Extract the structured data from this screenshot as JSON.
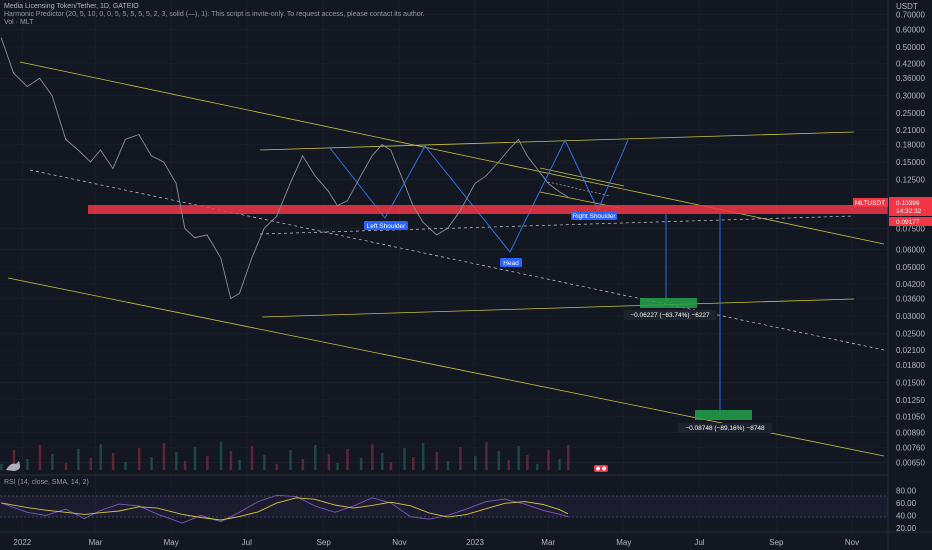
{
  "header": {
    "title": "Media Licensing Token/Tether, 1D, GATEIO",
    "indicator": "Harmonic Predictor (20, 5, 10, 0, 0, 5, 5, 5, 5, 5, 2, 3, solid (—), 1): This script is invite-only. To request access, please contact its author.",
    "volume": "Vol · MLT"
  },
  "price_axis": {
    "currency": "USDT",
    "ticks": [
      "0.70000",
      "0.60000",
      "0.50000",
      "0.42000",
      "0.36000",
      "0.30000",
      "0.25000",
      "0.21000",
      "0.18000",
      "0.15000",
      "0.12500",
      "0.07500",
      "0.06000",
      "0.05000",
      "0.04200",
      "0.03600",
      "0.03000",
      "0.02500",
      "0.02100",
      "0.01800",
      "0.01500",
      "0.01250",
      "0.01050",
      "0.00890",
      "0.00760",
      "0.00650"
    ],
    "symbol_tag": "MLTUSDT",
    "last_price": "0.10399",
    "countdown": "14:32:32",
    "level_price": "0.09177",
    "top_tick": "0.10399"
  },
  "time_axis": {
    "ticks": [
      "2022",
      "Mar",
      "May",
      "Jul",
      "Sep",
      "Nov",
      "2023",
      "Mar",
      "May",
      "Jul",
      "Sep",
      "Nov"
    ]
  },
  "pattern_labels": {
    "left_shoulder": "Left Shoulder",
    "head": "Head",
    "right_shoulder": "Right Shoulder"
  },
  "measurements": {
    "target1": "−0.06227 (−63.74%) −6227",
    "target2": "−0.08748 (−89.16%) −8748"
  },
  "rsi": {
    "label": "RSI (14, close, SMA, 14, 2)",
    "ticks": [
      "80.00",
      "60.00",
      "40.00",
      "20.00"
    ]
  },
  "colors": {
    "background": "#131722",
    "price_line": "#8a8f9c",
    "channel": "#c9c23a",
    "resistance_band": "#f23645",
    "pattern": "#3179f5",
    "target_box": "#22a34a",
    "rsi_line": "#7e57c2",
    "rsi_ma": "#d6c43a"
  },
  "chart_data": {
    "type": "line",
    "title": "Media Licensing Token/Tether, 1D, GATEIO",
    "y_scale": "log",
    "ylim": [
      0.006,
      0.75
    ],
    "x_range": [
      "2021-12-14",
      "2023-11-30"
    ],
    "series": [
      {
        "name": "MLTUSDT",
        "points": [
          [
            "2021-12-15",
            0.55
          ],
          [
            "2021-12-25",
            0.38
          ],
          [
            "2022-01-05",
            0.33
          ],
          [
            "2022-01-15",
            0.36
          ],
          [
            "2022-01-25",
            0.3
          ],
          [
            "2022-02-05",
            0.19
          ],
          [
            "2022-02-15",
            0.17
          ],
          [
            "2022-02-25",
            0.15
          ],
          [
            "2022-03-05",
            0.17
          ],
          [
            "2022-03-15",
            0.14
          ],
          [
            "2022-03-25",
            0.19
          ],
          [
            "2022-04-05",
            0.2
          ],
          [
            "2022-04-15",
            0.16
          ],
          [
            "2022-04-25",
            0.15
          ],
          [
            "2022-05-05",
            0.12
          ],
          [
            "2022-05-12",
            0.075
          ],
          [
            "2022-05-20",
            0.068
          ],
          [
            "2022-05-30",
            0.07
          ],
          [
            "2022-06-10",
            0.055
          ],
          [
            "2022-06-18",
            0.036
          ],
          [
            "2022-06-25",
            0.038
          ],
          [
            "2022-07-05",
            0.055
          ],
          [
            "2022-07-15",
            0.075
          ],
          [
            "2022-07-25",
            0.085
          ],
          [
            "2022-08-05",
            0.12
          ],
          [
            "2022-08-15",
            0.16
          ],
          [
            "2022-08-25",
            0.13
          ],
          [
            "2022-09-05",
            0.11
          ],
          [
            "2022-09-12",
            0.095
          ],
          [
            "2022-09-20",
            0.1
          ],
          [
            "2022-10-01",
            0.13
          ],
          [
            "2022-10-10",
            0.16
          ],
          [
            "2022-10-18",
            0.18
          ],
          [
            "2022-10-25",
            0.17
          ],
          [
            "2022-11-05",
            0.12
          ],
          [
            "2022-11-12",
            0.095
          ],
          [
            "2022-11-20",
            0.08
          ],
          [
            "2022-12-01",
            0.07
          ],
          [
            "2022-12-10",
            0.075
          ],
          [
            "2022-12-20",
            0.09
          ],
          [
            "2023-01-01",
            0.12
          ],
          [
            "2023-01-10",
            0.13
          ],
          [
            "2023-01-20",
            0.15
          ],
          [
            "2023-01-28",
            0.17
          ],
          [
            "2023-02-05",
            0.19
          ],
          [
            "2023-02-12",
            0.16
          ],
          [
            "2023-02-20",
            0.14
          ],
          [
            "2023-03-01",
            0.12
          ],
          [
            "2023-03-10",
            0.11
          ],
          [
            "2023-03-17",
            0.104
          ]
        ]
      }
    ],
    "levels": [
      {
        "name": "resistance_band",
        "from": 0.092,
        "to": 0.104
      },
      {
        "name": "target1",
        "value": 0.036
      },
      {
        "name": "target2",
        "value": 0.0115
      }
    ],
    "rsi": {
      "ylim": [
        20,
        90
      ],
      "points": [
        [
          "2021-12-15",
          60
        ],
        [
          "2022-01-05",
          45
        ],
        [
          "2022-01-20",
          40
        ],
        [
          "2022-02-05",
          50
        ],
        [
          "2022-02-20",
          35
        ],
        [
          "2022-03-05",
          48
        ],
        [
          "2022-03-20",
          58
        ],
        [
          "2022-04-05",
          55
        ],
        [
          "2022-04-20",
          42
        ],
        [
          "2022-05-10",
          28
        ],
        [
          "2022-05-25",
          40
        ],
        [
          "2022-06-10",
          30
        ],
        [
          "2022-06-25",
          45
        ],
        [
          "2022-07-10",
          62
        ],
        [
          "2022-07-25",
          72
        ],
        [
          "2022-08-10",
          70
        ],
        [
          "2022-08-25",
          55
        ],
        [
          "2022-09-10",
          45
        ],
        [
          "2022-09-25",
          55
        ],
        [
          "2022-10-10",
          68
        ],
        [
          "2022-10-25",
          60
        ],
        [
          "2022-11-10",
          38
        ],
        [
          "2022-11-25",
          34
        ],
        [
          "2022-12-10",
          40
        ],
        [
          "2022-12-25",
          50
        ],
        [
          "2023-01-10",
          62
        ],
        [
          "2023-01-25",
          66
        ],
        [
          "2023-02-10",
          58
        ],
        [
          "2023-02-25",
          48
        ],
        [
          "2023-03-10",
          42
        ],
        [
          "2023-03-17",
          38
        ]
      ]
    },
    "legend": "none",
    "grid": true
  }
}
